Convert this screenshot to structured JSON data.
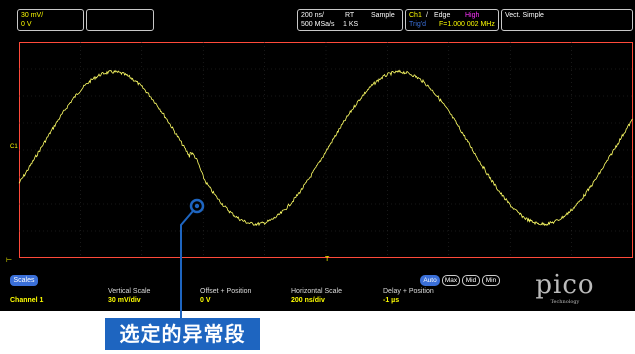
{
  "header": {
    "vertical": {
      "scale": "30 mV/",
      "offset": "0 V"
    },
    "timebase": {
      "time_div": "200 ns/",
      "mode": "RT",
      "acq": "Sample",
      "rate": "500 MSa/s",
      "points": "1 KS"
    },
    "trigger": {
      "source": "Ch1",
      "sep": "/",
      "type": "Edge",
      "level": "High",
      "status": "Trig'd",
      "freq": "F=1.000 002 MHz"
    },
    "vector": {
      "label": "Vect. Simple"
    }
  },
  "scope": {
    "channel_marker": "C1",
    "trigger_marker": "T"
  },
  "panel": {
    "scales_button": "Scales",
    "modes": [
      "Auto",
      "Max",
      "Mid",
      "Min"
    ],
    "channel_label": "Channel 1",
    "columns": [
      {
        "key": "Vertical Scale",
        "value": "30 mV/div"
      },
      {
        "key": "Offset + Position",
        "value": "0 V"
      },
      {
        "key": "Horizontal Scale",
        "value": "200 ns/div"
      },
      {
        "key": "Delay + Position",
        "value": "-1 µs"
      }
    ]
  },
  "logo": {
    "text": "pico",
    "sub": "Technology"
  },
  "annotation": {
    "label": "选定的异常段"
  },
  "colors": {
    "trace": "#ffff66",
    "graticule_border": "#ff4a3a",
    "accent": "#3a6fd8",
    "annotation_bg": "#1e65c0"
  }
}
